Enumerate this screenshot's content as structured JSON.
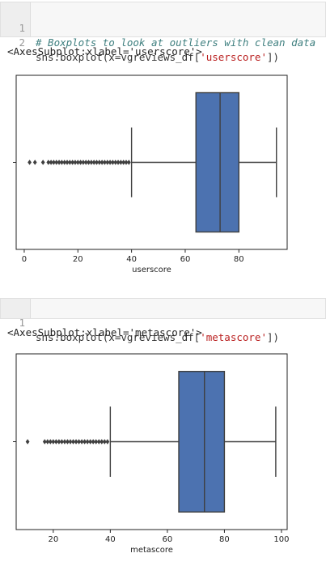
{
  "cell1": {
    "lines": [
      {
        "num": "1",
        "comment": "# Boxplots to look at outliers with clean data"
      },
      {
        "num": "2",
        "pre": "sns.boxplot(x=vgreviews_df[",
        "str": "'userscore'",
        "post": "])"
      }
    ],
    "output": "<AxesSubplot:xlabel='userscore'>"
  },
  "cell2": {
    "lines": [
      {
        "num": "1",
        "pre": "sns.boxplot(x=vgreviews_df[",
        "str": "'metascore'",
        "post": "])"
      }
    ],
    "output": "<AxesSubplot:xlabel='metascore'>"
  },
  "colors": {
    "box": "#4c72b0",
    "line": "#3f3f3f"
  },
  "chart_data": [
    {
      "type": "boxplot",
      "xlabel": "userscore",
      "xticks": [
        0,
        20,
        40,
        60,
        80
      ],
      "xlim": [
        -3,
        98
      ],
      "whisker_low": 40,
      "q1": 64,
      "median": 73,
      "q3": 80,
      "whisker_high": 94,
      "outliers": [
        2,
        4,
        7,
        9,
        10,
        11,
        12,
        13,
        14,
        15,
        16,
        17,
        18,
        19,
        20,
        21,
        22,
        23,
        24,
        25,
        26,
        27,
        28,
        29,
        30,
        31,
        32,
        33,
        34,
        35,
        36,
        37,
        38,
        39
      ]
    },
    {
      "type": "boxplot",
      "xlabel": "metascore",
      "xticks": [
        20,
        40,
        60,
        80,
        100
      ],
      "xlim": [
        7,
        102
      ],
      "whisker_low": 40,
      "q1": 64,
      "median": 73,
      "q3": 80,
      "whisker_high": 98,
      "outliers": [
        11,
        17,
        18,
        19,
        20,
        21,
        22,
        23,
        24,
        25,
        26,
        27,
        28,
        29,
        30,
        31,
        32,
        33,
        34,
        35,
        36,
        37,
        38,
        39
      ]
    }
  ]
}
